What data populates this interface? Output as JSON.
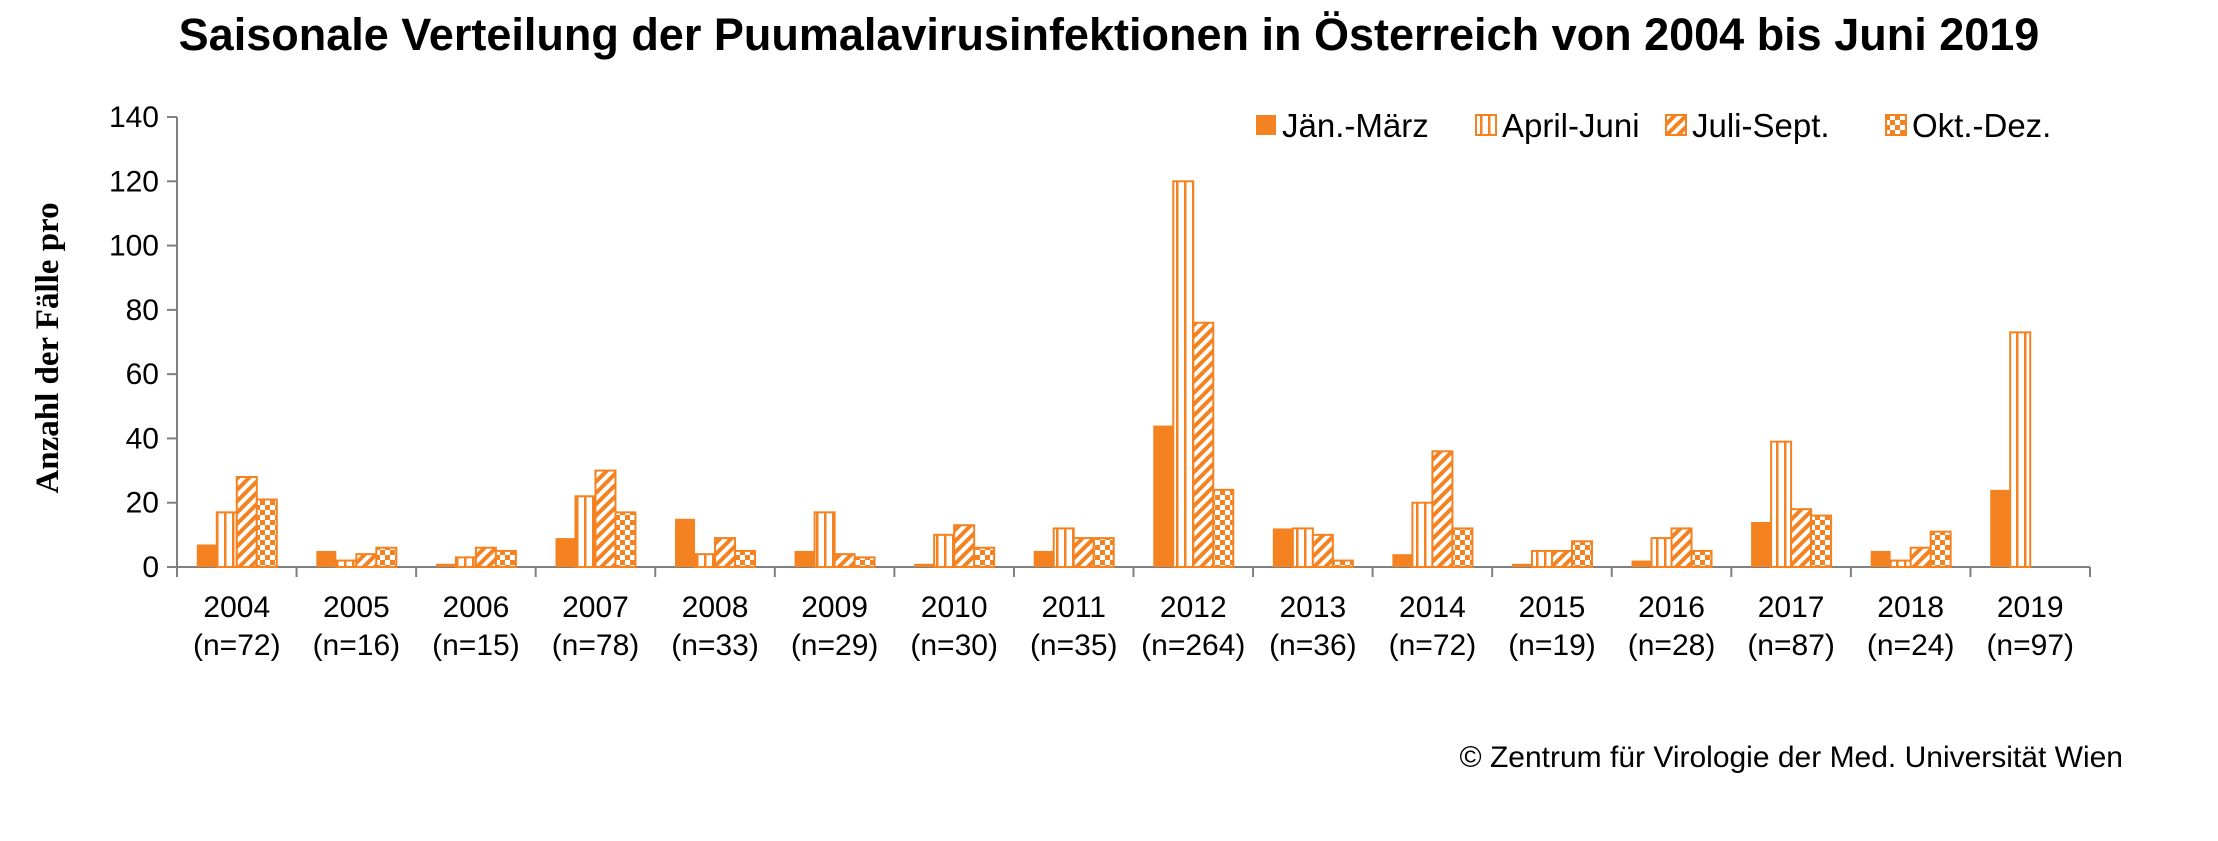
{
  "credit": "© Zentrum für Virologie der Med. Universität Wien",
  "colors": {
    "series": "#f58220",
    "axis": "#808080"
  },
  "chart_data": {
    "type": "bar",
    "title": "Saisonale Verteilung der Puumalavirusinfektionen in Österreich von 2004 bis Juni 2019",
    "ylabel": "Anzahl der Fälle pro",
    "xlabel": "",
    "ylim": [
      0,
      140
    ],
    "yticks": [
      0,
      20,
      40,
      60,
      80,
      100,
      120,
      140
    ],
    "legend_position": "top-right",
    "categories": [
      {
        "year": "2004",
        "n": "(n=72)"
      },
      {
        "year": "2005",
        "n": "(n=16)"
      },
      {
        "year": "2006",
        "n": "(n=15)"
      },
      {
        "year": "2007",
        "n": "(n=78)"
      },
      {
        "year": "2008",
        "n": "(n=33)"
      },
      {
        "year": "2009",
        "n": "(n=29)"
      },
      {
        "year": "2010",
        "n": "(n=30)"
      },
      {
        "year": "2011",
        "n": "(n=35)"
      },
      {
        "year": "2012",
        "n": "(n=264)"
      },
      {
        "year": "2013",
        "n": "(n=36)"
      },
      {
        "year": "2014",
        "n": "(n=72)"
      },
      {
        "year": "2015",
        "n": "(n=19)"
      },
      {
        "year": "2016",
        "n": "(n=28)"
      },
      {
        "year": "2017",
        "n": "(n=87)"
      },
      {
        "year": "2018",
        "n": "(n=24)"
      },
      {
        "year": "2019",
        "n": "(n=97)"
      }
    ],
    "series": [
      {
        "name": "Jän.-März",
        "pattern": "solid",
        "values": [
          7,
          5,
          1,
          9,
          15,
          5,
          1,
          5,
          44,
          12,
          4,
          1,
          2,
          14,
          5,
          24
        ]
      },
      {
        "name": "April-Juni",
        "pattern": "vertical-stripes",
        "values": [
          17,
          2,
          3,
          22,
          4,
          17,
          10,
          12,
          120,
          12,
          20,
          5,
          9,
          39,
          2,
          73
        ]
      },
      {
        "name": "Juli-Sept.",
        "pattern": "diagonal-hatch",
        "values": [
          28,
          4,
          6,
          30,
          9,
          4,
          13,
          9,
          76,
          10,
          36,
          5,
          12,
          18,
          6,
          null
        ]
      },
      {
        "name": "Okt.-Dez.",
        "pattern": "checker",
        "values": [
          21,
          6,
          5,
          17,
          5,
          3,
          6,
          9,
          24,
          2,
          12,
          8,
          5,
          16,
          11,
          null
        ]
      }
    ]
  }
}
